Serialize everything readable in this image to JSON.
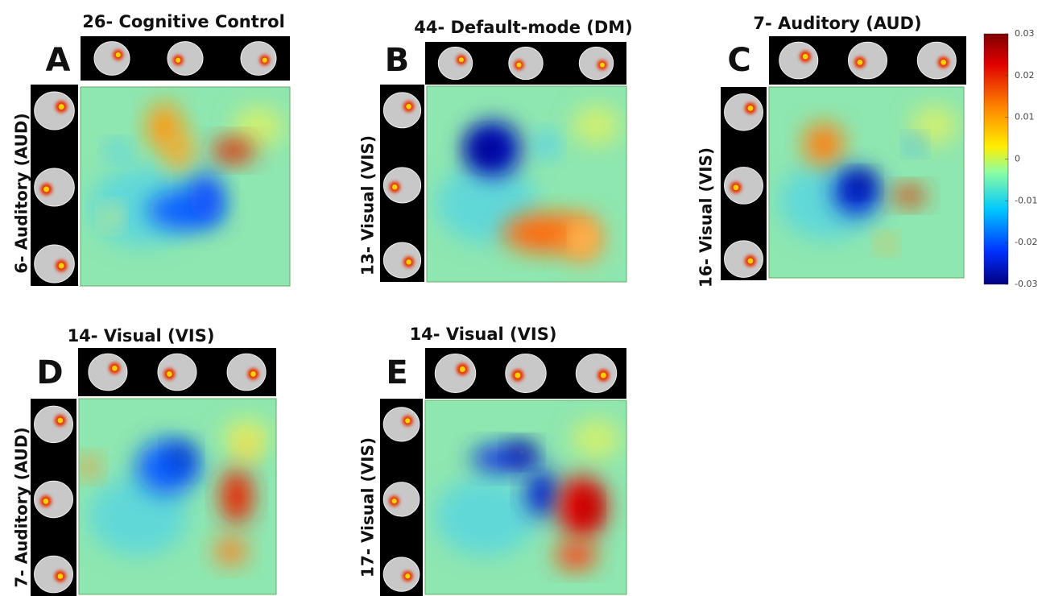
{
  "panels": [
    {
      "letter": "A",
      "title": "26- Cognitive Control",
      "side_label": "6- Auditory (AUD)"
    },
    {
      "letter": "B",
      "title": "44- Default-mode (DM)",
      "side_label": "13- Visual (VIS)"
    },
    {
      "letter": "C",
      "title": "7- Auditory (AUD)",
      "side_label": "16- Visual (VIS)"
    },
    {
      "letter": "D",
      "title": "14- Visual (VIS)",
      "side_label": "7- Auditory (AUD)"
    },
    {
      "letter": "E",
      "title": "14- Visual (VIS)",
      "side_label": "17- Visual (VIS)"
    }
  ],
  "colorbar": {
    "ticks": [
      0.03,
      0.02,
      0.01,
      0,
      -0.01,
      -0.02,
      -0.03
    ]
  }
}
